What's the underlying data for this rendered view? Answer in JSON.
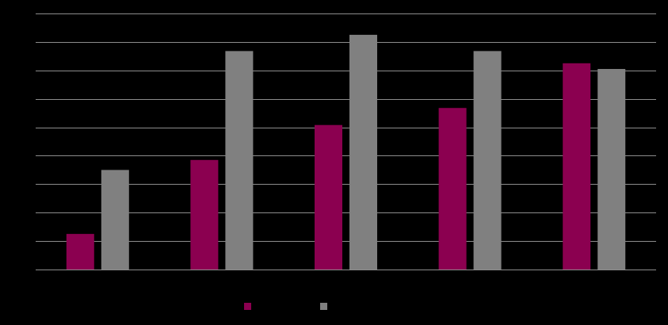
{
  "chart_data": {
    "type": "bar",
    "categories": [
      "",
      "",
      "",
      "",
      ""
    ],
    "series": [
      {
        "color": "#8b0050",
        "values": [
          1.25,
          3.85,
          5.08,
          5.68,
          7.25
        ]
      },
      {
        "color": "#808080",
        "values": [
          3.5,
          7.68,
          8.25,
          7.68,
          7.05
        ]
      }
    ],
    "ylim": [
      0,
      9
    ],
    "grid": true,
    "legend_position": "bottom",
    "title": "",
    "xlabel": "",
    "ylabel": ""
  }
}
